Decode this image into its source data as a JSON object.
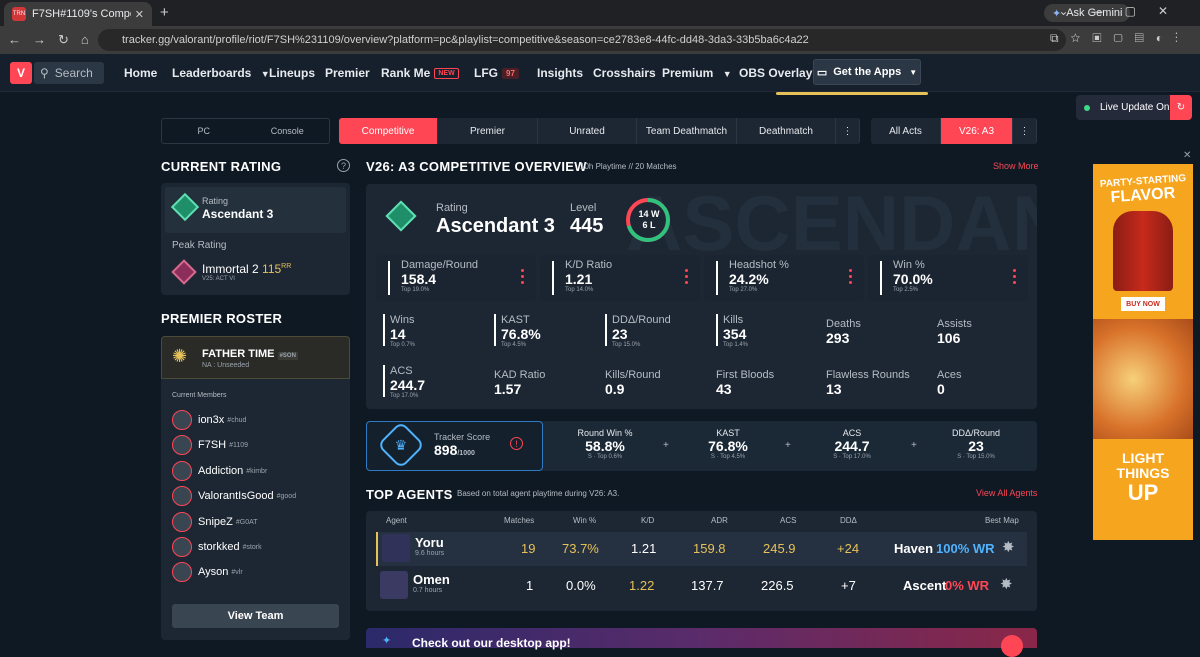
{
  "browser": {
    "tab_title": "F7SH#1109's Competitive Multi",
    "tab_favicon": "TRN",
    "ask_gemini": "Ask Gemini",
    "url": "tracker.gg/valorant/profile/riot/F7SH%231109/overview?platform=pc&playlist=competitive&season=ce2783e8-44fc-dd48-3da3-33b5ba6c4a22"
  },
  "header": {
    "search": "Search",
    "nav": {
      "home": "Home",
      "leaderboards": "Leaderboards",
      "lineups": "Lineups",
      "premier": "Premier",
      "rankme": "Rank Me",
      "rankme_badge": "NEW",
      "lfg": "LFG",
      "lfg_badge": "97",
      "insights": "Insights",
      "crosshairs": "Crosshairs",
      "premium": "Premium",
      "obs": "OBS Overlay"
    },
    "get_apps": "Get the Apps"
  },
  "live_update": "Live Update On",
  "platform": {
    "pc": "PC",
    "console": "Console"
  },
  "playlists": [
    "Competitive",
    "Premier",
    "Unrated",
    "Team Deathmatch",
    "Deathmatch"
  ],
  "acts": {
    "all": "All Acts",
    "current": "V26: A3"
  },
  "current_rating": {
    "title": "CURRENT RATING",
    "rating_label": "Rating",
    "rating": "Ascendant 3",
    "peak_label": "Peak Rating",
    "peak_rank": "Immortal 2",
    "peak_rr": "115",
    "peak_rr_unit": "RR",
    "peak_season": "V25: ACT VI"
  },
  "premier": {
    "title": "PREMIER ROSTER",
    "team_name": "FATHER TIME",
    "team_tag": "#SON",
    "team_division": "NA : Unseeded",
    "members_label": "Current Members",
    "members": [
      {
        "name": "ion3x",
        "tag": "#chud"
      },
      {
        "name": "F7SH",
        "tag": "#1109"
      },
      {
        "name": "Addiction",
        "tag": "#kimbr"
      },
      {
        "name": "ValorantIsGood",
        "tag": "#good"
      },
      {
        "name": "SnipeZ",
        "tag": "#G0AT"
      },
      {
        "name": "storkked",
        "tag": "#stork"
      },
      {
        "name": "Ayson",
        "tag": "#vlr"
      }
    ],
    "view_team": "View Team"
  },
  "overview": {
    "title": "V26: A3 COMPETITIVE OVERVIEW",
    "playtime": "10h Playtime",
    "sep": "//",
    "matches": "20 Matches",
    "show_more": "Show More",
    "bg_text": "ASCENDANT",
    "rating_label": "Rating",
    "rating": "Ascendant 3",
    "level_label": "Level",
    "level": "445",
    "wins_short": "14 W",
    "losses_short": "6 L",
    "win_fraction": 0.7,
    "cards": [
      {
        "label": "Damage/Round",
        "value": "158.4",
        "top": "Top 19.0%"
      },
      {
        "label": "K/D Ratio",
        "value": "1.21",
        "top": "Top 14.0%"
      },
      {
        "label": "Headshot %",
        "value": "24.2%",
        "top": "Top 27.0%"
      },
      {
        "label": "Win %",
        "value": "70.0%",
        "top": "Top 2.5%"
      }
    ],
    "grid": [
      {
        "label": "Wins",
        "value": "14",
        "top": "Top 0.7%"
      },
      {
        "label": "KAST",
        "value": "76.8%",
        "top": "Top 4.5%"
      },
      {
        "label": "DDΔ/Round",
        "value": "23",
        "top": "Top 15.0%"
      },
      {
        "label": "Kills",
        "value": "354",
        "top": "Top 1.4%"
      },
      {
        "label": "Deaths",
        "value": "293",
        "top": ""
      },
      {
        "label": "Assists",
        "value": "106",
        "top": ""
      },
      {
        "label": "ACS",
        "value": "244.7",
        "top": "Top 17.0%"
      },
      {
        "label": "KAD Ratio",
        "value": "1.57",
        "top": ""
      },
      {
        "label": "Kills/Round",
        "value": "0.9",
        "top": ""
      },
      {
        "label": "First Bloods",
        "value": "43",
        "top": ""
      },
      {
        "label": "Flawless Rounds",
        "value": "13",
        "top": ""
      },
      {
        "label": "Aces",
        "value": "0",
        "top": ""
      }
    ]
  },
  "tracker_score": {
    "label": "Tracker Score",
    "value": "898",
    "max": "/1000",
    "items": [
      {
        "label": "Round Win %",
        "value": "58.8%",
        "sub": "S · Top 0.6%"
      },
      {
        "label": "KAST",
        "value": "76.8%",
        "sub": "S · Top 4.5%"
      },
      {
        "label": "ACS",
        "value": "244.7",
        "sub": "S · Top 17.0%"
      },
      {
        "label": "DDΔ/Round",
        "value": "23",
        "sub": "S · Top 15.0%"
      }
    ]
  },
  "top_agents": {
    "title": "TOP AGENTS",
    "subtitle": "Based on total agent playtime during V26: A3.",
    "view_all": "View All Agents",
    "columns": [
      "Agent",
      "Matches",
      "Win %",
      "K/D",
      "ADR",
      "ACS",
      "DDΔ",
      "Best Map"
    ],
    "rows": [
      {
        "agent": "Yoru",
        "hours": "9.6 hours",
        "matches": "19",
        "win": "73.7%",
        "kd": "1.21",
        "adr": "159.8",
        "acs": "245.9",
        "dd": "+24",
        "map": "Haven",
        "map_wr": "100% WR",
        "wr_color": "#4fb3ff"
      },
      {
        "agent": "Omen",
        "hours": "0.7 hours",
        "matches": "1",
        "win": "0.0%",
        "kd": "1.22",
        "adr": "137.7",
        "acs": "226.5",
        "dd": "+7",
        "map": "Ascent",
        "map_wr": "0% WR",
        "wr_color": "#ff4655"
      }
    ]
  },
  "desktop_banner": "Check out our desktop app!",
  "ad": {
    "line1": "PARTY-STARTING",
    "line2": "FLAVOR",
    "buy": "BUY NOW",
    "light": "LIGHT",
    "things": "THINGS",
    "up": "UP"
  },
  "colors": {
    "accent": "#ff4655",
    "bg": "#0f1923",
    "panel": "#1d2733",
    "gold": "#e6c15a"
  }
}
